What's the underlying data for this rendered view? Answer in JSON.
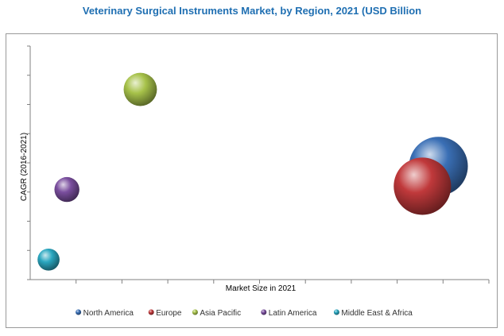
{
  "chart_data": {
    "type": "scatter",
    "title": "Veterinary Surgical Instruments Market, by Region, 2021 (USD Billion",
    "xlabel": "Market Size in 2021",
    "ylabel": "CAGR (2016-2021)",
    "x_tick_count": 10,
    "y_tick_count": 8,
    "grid": false,
    "legend_position": "bottom",
    "series": [
      {
        "name": "North America",
        "color": "#3a6fb5",
        "x": 8.9,
        "y": 3.4,
        "size": 1.0
      },
      {
        "name": "Europe",
        "color": "#c0393b",
        "x": 8.55,
        "y": 2.8,
        "size": 0.95
      },
      {
        "name": "Asia Pacific",
        "color": "#a7c24a",
        "x": 2.4,
        "y": 5.7,
        "size": 0.32
      },
      {
        "name": "Latin America",
        "color": "#7a4e9e",
        "x": 0.8,
        "y": 2.7,
        "size": 0.18
      },
      {
        "name": "Middle East & Africa",
        "color": "#2aa7c0",
        "x": 0.4,
        "y": 0.6,
        "size": 0.14
      }
    ],
    "xlim": [
      0,
      10
    ],
    "ylim": [
      0,
      7
    ]
  }
}
